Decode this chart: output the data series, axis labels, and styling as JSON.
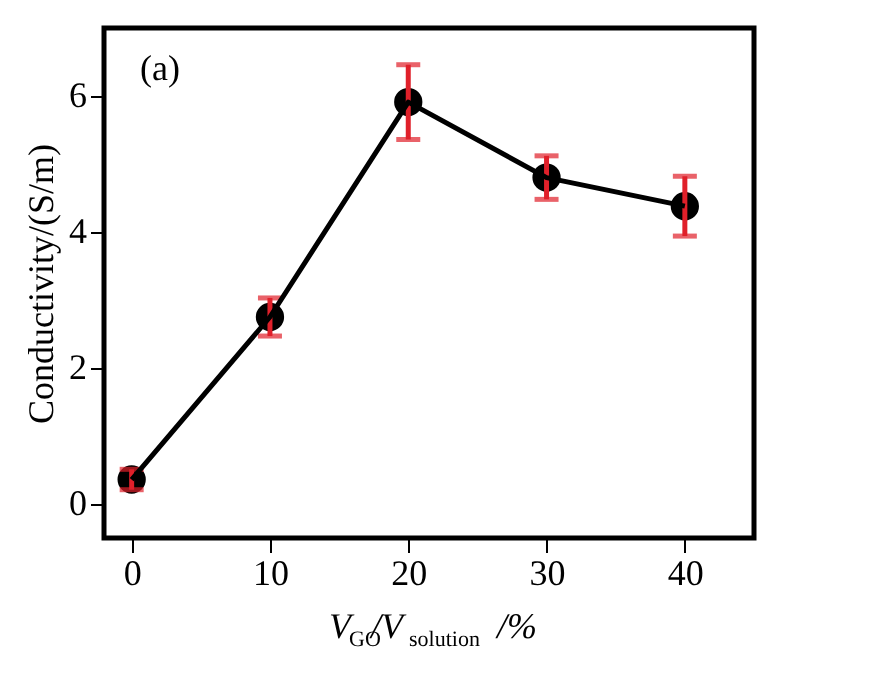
{
  "chart_data": {
    "type": "line",
    "xlabel": "V$_{GO}$/V$_{solution}$/%",
    "ylabel": "Conductivity/(S/m)",
    "annotations": [
      "(a)"
    ],
    "x": [
      0,
      10,
      20,
      30,
      40
    ],
    "series": [
      {
        "color": "#000000",
        "values": [
          0.36,
          2.75,
          5.91,
          4.8,
          4.38
        ],
        "errors": [
          0.15,
          0.28,
          0.55,
          0.32,
          0.44
        ]
      }
    ],
    "xlim": [
      -2,
      45
    ],
    "xticks": [
      0,
      10,
      20,
      30,
      40
    ],
    "ylim": [
      -0.5,
      7
    ],
    "yticks": [
      0,
      2,
      4,
      6
    ],
    "grid": false,
    "marker": "circle",
    "line_style": "solid"
  }
}
